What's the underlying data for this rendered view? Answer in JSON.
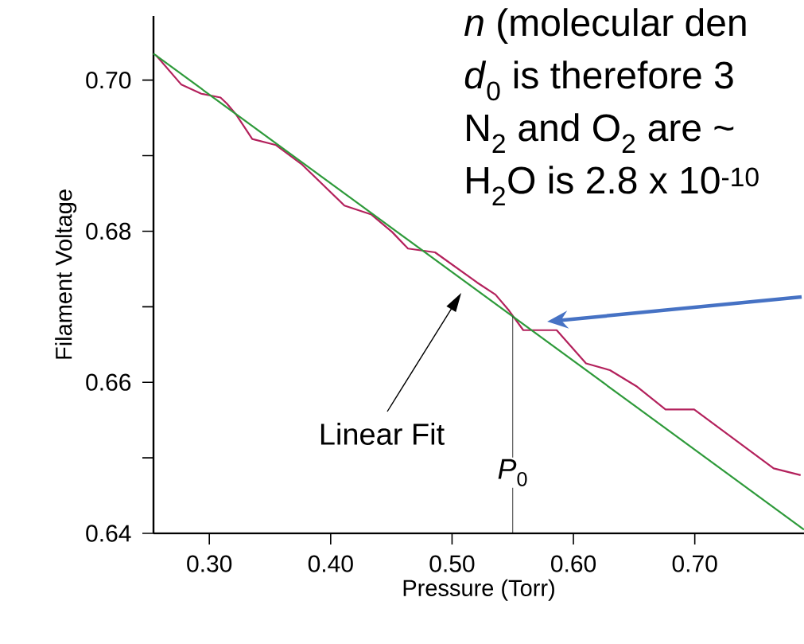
{
  "chart_data": {
    "type": "line",
    "xlabel": "Pressure (Torr)",
    "ylabel": "Filament Voltage",
    "xlim": [
      0.254,
      0.79
    ],
    "ylim": [
      0.64,
      0.7085
    ],
    "xticks": [
      {
        "value": 0.3,
        "label": "0.30"
      },
      {
        "value": 0.4,
        "label": "0.40"
      },
      {
        "value": 0.5,
        "label": "0.50"
      },
      {
        "value": 0.6,
        "label": "0.60"
      },
      {
        "value": 0.7,
        "label": "0.70"
      }
    ],
    "yticks": [
      {
        "value": 0.64,
        "label": "0.64"
      },
      {
        "value": 0.65,
        "label": null
      },
      {
        "value": 0.66,
        "label": "0.66"
      },
      {
        "value": 0.67,
        "label": null
      },
      {
        "value": 0.68,
        "label": "0.68"
      },
      {
        "value": 0.69,
        "label": null
      },
      {
        "value": 0.7,
        "label": "0.70"
      }
    ],
    "series": [
      {
        "color": "#b3215c",
        "x": [
          0.256,
          0.277,
          0.2934,
          0.3092,
          0.3144,
          0.3223,
          0.3354,
          0.355,
          0.3766,
          0.4113,
          0.4336,
          0.4506,
          0.4637,
          0.486,
          0.5207,
          0.5358,
          0.5469,
          0.5587,
          0.5862,
          0.6104,
          0.6301,
          0.6517,
          0.6759,
          0.6995,
          0.765,
          0.7872
        ],
        "values": [
          0.7033,
          0.6994,
          0.6982,
          0.6977,
          0.6969,
          0.6954,
          0.6922,
          0.6914,
          0.6888,
          0.6834,
          0.6822,
          0.6799,
          0.6777,
          0.6772,
          0.6732,
          0.6716,
          0.6695,
          0.6669,
          0.6669,
          0.6625,
          0.6616,
          0.6595,
          0.6564,
          0.6564,
          0.6486,
          0.6477
        ]
      },
      {
        "color": "#2e9a3a",
        "x": [
          0.254,
          0.79
        ],
        "values": [
          0.7035,
          0.6405
        ]
      }
    ],
    "ref_lines": [
      {
        "axis": "x",
        "value": 0.55,
        "label": "*P*$_{0}$",
        "color": "#000000"
      }
    ],
    "annotations": [
      "Linear Fit",
      "*n* (molecular den",
      "*d*$_{0}$  is therefore 3",
      "N$_{2}$ and O$_{2}$ are ~",
      "H$_{2}$O is 2.8 x 10$^{-10}$"
    ],
    "grid": false,
    "marker": "none",
    "line_style": "solid"
  }
}
